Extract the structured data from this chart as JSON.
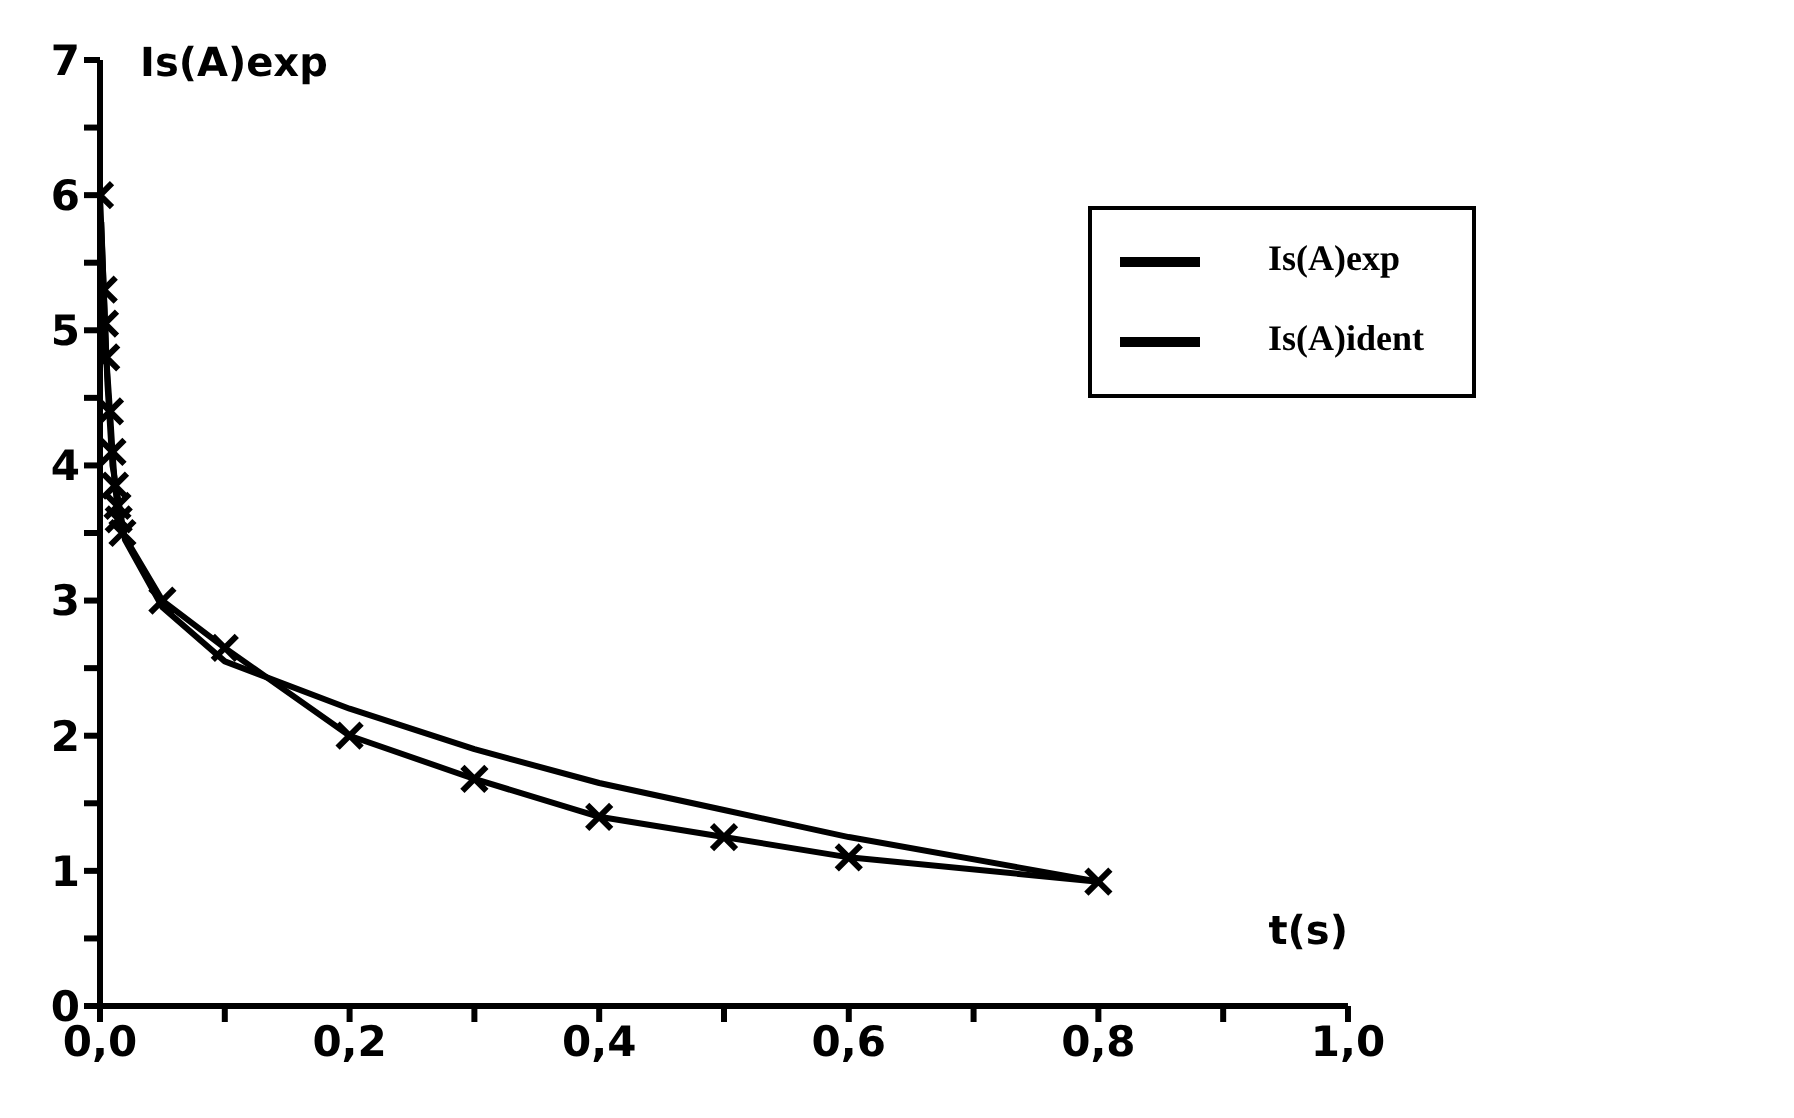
{
  "chart_data": {
    "type": "line",
    "xlabel": "t(s)",
    "ylabel": "Is(A)exp",
    "xlim": [
      0,
      1
    ],
    "ylim": [
      0,
      7
    ],
    "xticks": [
      {
        "value": 0,
        "label": "0,0"
      },
      {
        "value": 0.1,
        "label": null
      },
      {
        "value": 0.2,
        "label": "0,2"
      },
      {
        "value": 0.3,
        "label": null
      },
      {
        "value": 0.4,
        "label": "0,4"
      },
      {
        "value": 0.5,
        "label": null
      },
      {
        "value": 0.6,
        "label": "0,6"
      },
      {
        "value": 0.7,
        "label": null
      },
      {
        "value": 0.8,
        "label": "0,8"
      },
      {
        "value": 0.9,
        "label": null
      },
      {
        "value": 1,
        "label": "1,0"
      }
    ],
    "yticks": [
      0,
      {
        "value": 0.5,
        "label": null
      },
      1,
      {
        "value": 1.5,
        "label": null
      },
      2,
      {
        "value": 2.5,
        "label": null
      },
      3,
      {
        "value": 3.5,
        "label": null
      },
      4,
      {
        "value": 4.5,
        "label": null
      },
      5,
      {
        "value": 5.5,
        "label": null
      },
      6,
      {
        "value": 6.5,
        "label": null
      },
      7
    ],
    "grid": false,
    "legend": "top right",
    "series": [
      {
        "name": "Is(A)exp",
        "color": "#000000",
        "marker": "cross",
        "x": [
          0,
          0.003,
          0.004,
          0.005,
          0.008,
          0.01,
          0.012,
          0.014,
          0.015,
          0.018,
          0.05,
          0.1,
          0.2,
          0.3,
          0.4,
          0.5,
          0.6,
          0.8
        ],
        "values": [
          6,
          5.3,
          5.05,
          4.8,
          4.4,
          4.1,
          3.85,
          3.7,
          3.6,
          3.5,
          3.0,
          2.65,
          2.0,
          1.68,
          1.4,
          1.25,
          1.1,
          0.92
        ]
      },
      {
        "name": "Is(A)ident",
        "color": "#000000",
        "marker": "none",
        "x": [
          0.001,
          0.003,
          0.006,
          0.01,
          0.02,
          0.05,
          0.1,
          0.2,
          0.3,
          0.4,
          0.5,
          0.6,
          0.8
        ],
        "values": [
          5.8,
          5.3,
          4.6,
          4.0,
          3.45,
          2.95,
          2.55,
          2.2,
          1.9,
          1.65,
          1.45,
          1.25,
          0.92
        ]
      }
    ]
  }
}
